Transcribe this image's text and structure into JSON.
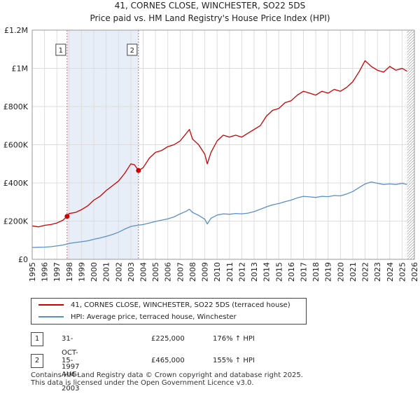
{
  "chart_data": {
    "type": "line",
    "title": "41, CORNES CLOSE, WINCHESTER, SO22 5DS",
    "subtitle": "Price paid vs. HM Land Registry's House Price Index (HPI)",
    "xlabel": "",
    "ylabel": "",
    "xlim": [
      1995,
      2026
    ],
    "ylim": [
      0,
      1200000
    ],
    "grid": true,
    "x_ticks": [
      "1995",
      "1996",
      "1997",
      "1998",
      "1999",
      "2000",
      "2001",
      "2002",
      "2003",
      "2004",
      "2005",
      "2006",
      "2007",
      "2008",
      "2009",
      "2010",
      "2011",
      "2012",
      "2013",
      "2014",
      "2015",
      "2016",
      "2017",
      "2018",
      "2019",
      "2020",
      "2021",
      "2022",
      "2023",
      "2024",
      "2025",
      "2026"
    ],
    "y_ticks": [
      {
        "value": 0,
        "label": "£0"
      },
      {
        "value": 200000,
        "label": "£200K"
      },
      {
        "value": 400000,
        "label": "£400K"
      },
      {
        "value": 600000,
        "label": "£600K"
      },
      {
        "value": 800000,
        "label": "£800K"
      },
      {
        "value": 1000000,
        "label": "£1M"
      },
      {
        "value": 1200000,
        "label": "£1.2M"
      }
    ],
    "series": [
      {
        "name": "41, CORNES CLOSE, WINCHESTER, SO22 5DS (terraced house)",
        "color": "#cc0000",
        "x": [
          1995.0,
          1995.5,
          1996.0,
          1996.5,
          1997.0,
          1997.5,
          1997.83,
          1998.0,
          1998.5,
          1999.0,
          1999.5,
          2000.0,
          2000.5,
          2001.0,
          2001.5,
          2002.0,
          2002.5,
          2003.0,
          2003.3,
          2003.62,
          2004.0,
          2004.5,
          2005.0,
          2005.5,
          2006.0,
          2006.5,
          2007.0,
          2007.5,
          2007.75,
          2008.0,
          2008.5,
          2009.0,
          2009.2,
          2009.5,
          2010.0,
          2010.5,
          2011.0,
          2011.5,
          2012.0,
          2012.5,
          2013.0,
          2013.5,
          2014.0,
          2014.5,
          2015.0,
          2015.5,
          2016.0,
          2016.5,
          2017.0,
          2017.5,
          2018.0,
          2018.5,
          2019.0,
          2019.5,
          2020.0,
          2020.5,
          2021.0,
          2021.5,
          2022.0,
          2022.5,
          2023.0,
          2023.5,
          2024.0,
          2024.5,
          2025.0,
          2025.4
        ],
        "values": [
          175000,
          170000,
          178000,
          182000,
          190000,
          205000,
          225000,
          240000,
          245000,
          260000,
          280000,
          310000,
          330000,
          360000,
          385000,
          410000,
          450000,
          500000,
          495000,
          465000,
          480000,
          530000,
          560000,
          570000,
          590000,
          600000,
          620000,
          660000,
          680000,
          630000,
          600000,
          550000,
          500000,
          560000,
          620000,
          650000,
          640000,
          650000,
          640000,
          660000,
          680000,
          700000,
          750000,
          780000,
          790000,
          820000,
          830000,
          860000,
          880000,
          870000,
          860000,
          880000,
          870000,
          890000,
          880000,
          900000,
          930000,
          980000,
          1040000,
          1010000,
          990000,
          980000,
          1010000,
          990000,
          1000000,
          985000
        ]
      },
      {
        "name": "HPI: Average price, terraced house, Winchester",
        "color": "#5b8fc9",
        "x": [
          1995.0,
          1995.5,
          1996.0,
          1996.5,
          1997.0,
          1997.5,
          1998.0,
          1998.5,
          1999.0,
          1999.5,
          2000.0,
          2000.5,
          2001.0,
          2001.5,
          2002.0,
          2002.5,
          2003.0,
          2003.5,
          2004.0,
          2004.5,
          2005.0,
          2005.5,
          2006.0,
          2006.5,
          2007.0,
          2007.5,
          2007.75,
          2008.0,
          2008.5,
          2009.0,
          2009.2,
          2009.5,
          2010.0,
          2010.5,
          2011.0,
          2011.5,
          2012.0,
          2012.5,
          2013.0,
          2013.5,
          2014.0,
          2014.5,
          2015.0,
          2015.5,
          2016.0,
          2016.5,
          2017.0,
          2017.5,
          2018.0,
          2018.5,
          2019.0,
          2019.5,
          2020.0,
          2020.5,
          2021.0,
          2021.5,
          2022.0,
          2022.5,
          2023.0,
          2023.5,
          2024.0,
          2024.5,
          2025.0,
          2025.4
        ],
        "values": [
          62000,
          63000,
          64000,
          66000,
          70000,
          75000,
          83000,
          88000,
          92000,
          97000,
          105000,
          112000,
          120000,
          130000,
          142000,
          158000,
          172000,
          178000,
          182000,
          190000,
          198000,
          205000,
          212000,
          222000,
          238000,
          252000,
          262000,
          246000,
          230000,
          210000,
          185000,
          215000,
          232000,
          238000,
          236000,
          240000,
          238000,
          242000,
          250000,
          262000,
          275000,
          285000,
          292000,
          302000,
          310000,
          322000,
          330000,
          327000,
          324000,
          330000,
          328000,
          334000,
          332000,
          342000,
          355000,
          375000,
          395000,
          405000,
          398000,
          392000,
          395000,
          392000,
          398000,
          392000
        ]
      }
    ],
    "annotations": [
      {
        "label": "1",
        "x": 1997.83,
        "y": 225000
      },
      {
        "label": "2",
        "x": 2003.62,
        "y": 465000
      }
    ],
    "shaded_regions": [
      [
        1997.83,
        2003.62
      ]
    ],
    "hatched_region": [
      2025.4,
      2026
    ]
  },
  "legend": {
    "items": [
      {
        "label": "41, CORNES CLOSE, WINCHESTER, SO22 5DS (terraced house)",
        "color": "#cc0000"
      },
      {
        "label": "HPI: Average price, terraced house, Winchester",
        "color": "#5b8fc9"
      }
    ]
  },
  "transactions": [
    {
      "num": "1",
      "date": "31-OCT-1997",
      "price": "£225,000",
      "hpi": "176% ↑ HPI"
    },
    {
      "num": "2",
      "date": "15-AUG-2003",
      "price": "£465,000",
      "hpi": "155% ↑ HPI"
    }
  ],
  "footer": {
    "line1": "Contains HM Land Registry data © Crown copyright and database right 2025.",
    "line2": "This data is licensed under the Open Government Licence v3.0."
  }
}
